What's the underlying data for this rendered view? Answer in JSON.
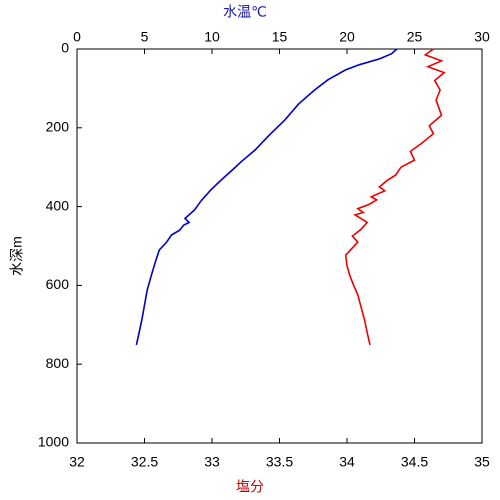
{
  "chart_data": {
    "type": "line",
    "xlabel": "塩分",
    "x2label": "水温℃",
    "ylabel": "水深m",
    "xlim": [
      32,
      35
    ],
    "xticks": [
      32,
      32.5,
      33,
      33.5,
      34,
      34.5,
      35
    ],
    "x2lim": [
      0,
      30
    ],
    "x2ticks": [
      0,
      5,
      10,
      15,
      20,
      25,
      30
    ],
    "ylim": [
      0,
      1000
    ],
    "yticks": [
      0,
      200,
      400,
      600,
      800,
      1000
    ],
    "y_inverted": true,
    "xlabel_color": "#cc0000",
    "x2label_color": "#1a1aa0",
    "series": [
      {
        "color": "#0000cc",
        "axis": "x2",
        "x": [
          23.7,
          23.3,
          22.4,
          20.9,
          19.9,
          18.6,
          17.6,
          16.4,
          15.4,
          14.2,
          13.2,
          12.2,
          11.5,
          10.6,
          9.9,
          9.2,
          8.7,
          8.0,
          8.3,
          7.9,
          7.6,
          7.0,
          6.6,
          6.1,
          5.8,
          5.5,
          5.2,
          5.0,
          4.8,
          4.6,
          4.4
        ],
        "y": [
          0,
          12,
          25,
          40,
          53,
          78,
          104,
          140,
          180,
          220,
          256,
          285,
          307,
          335,
          358,
          385,
          409,
          430,
          440,
          447,
          460,
          472,
          492,
          510,
          541,
          575,
          612,
          650,
          688,
          720,
          751
        ]
      },
      {
        "color": "#ee0000",
        "axis": "x",
        "x": [
          34.64,
          34.58,
          34.7,
          34.6,
          34.72,
          34.65,
          34.69,
          34.66,
          34.7,
          34.61,
          34.64,
          34.55,
          34.47,
          34.5,
          34.4,
          34.36,
          34.3,
          34.24,
          34.28,
          34.18,
          34.22,
          34.16,
          34.08,
          34.12,
          34.06,
          34.15,
          34.1,
          34.04,
          34.08,
          33.99,
          34.0,
          34.02,
          34.05,
          34.08,
          34.13,
          34.15,
          34.17
        ],
        "y": [
          0,
          15,
          30,
          45,
          60,
          80,
          104,
          130,
          168,
          195,
          215,
          240,
          260,
          282,
          300,
          320,
          333,
          350,
          360,
          375,
          383,
          395,
          405,
          415,
          421,
          440,
          459,
          475,
          490,
          523,
          550,
          574,
          600,
          624,
          688,
          720,
          751
        ]
      }
    ]
  }
}
